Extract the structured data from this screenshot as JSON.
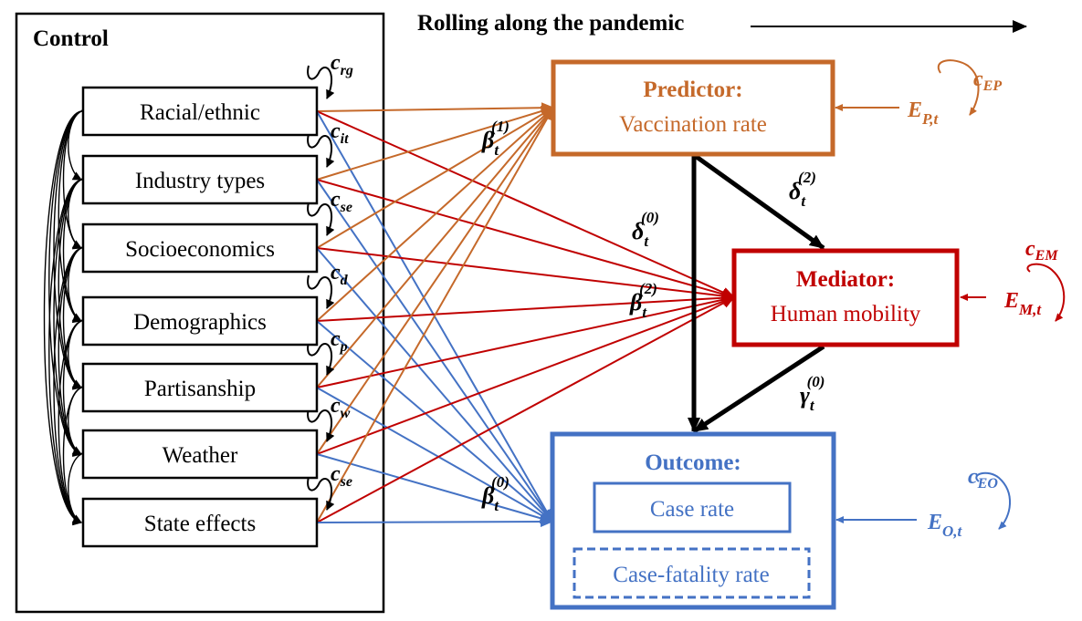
{
  "header": {
    "title": "Rolling along the pandemic"
  },
  "control": {
    "title": "Control",
    "items": [
      {
        "label": "Racial/ethnic",
        "coef": "c",
        "sub": "rg"
      },
      {
        "label": "Industry types",
        "coef": "c",
        "sub": "it"
      },
      {
        "label": "Socioeconomics",
        "coef": "c",
        "sub": "se"
      },
      {
        "label": "Demographics",
        "coef": "c",
        "sub": "d"
      },
      {
        "label": "Partisanship",
        "coef": "c",
        "sub": "p"
      },
      {
        "label": "Weather",
        "coef": "c",
        "sub": "w"
      },
      {
        "label": "State effects",
        "coef": "c",
        "sub": "se"
      }
    ]
  },
  "predictor": {
    "title": "Predictor:",
    "subtitle": "Vaccination rate",
    "error": "E",
    "error_sub": "P,t",
    "self_coef": "c",
    "self_sub": "EP"
  },
  "mediator": {
    "title": "Mediator:",
    "subtitle": "Human mobility",
    "error": "E",
    "error_sub": "M,t",
    "self_coef": "c",
    "self_sub": "EM"
  },
  "outcome": {
    "title": "Outcome:",
    "item1": "Case rate",
    "item2": "Case-fatality rate",
    "error": "E",
    "error_sub": "O,t",
    "self_coef": "c",
    "self_sub": "EO"
  },
  "coefficients": {
    "beta1": {
      "sym": "β",
      "sub": "t",
      "sup": "(1)"
    },
    "beta2": {
      "sym": "β",
      "sub": "t",
      "sup": "(2)"
    },
    "beta0": {
      "sym": "β",
      "sub": "t",
      "sup": "(0)"
    },
    "delta0": {
      "sym": "δ",
      "sub": "t",
      "sup": "(0)"
    },
    "delta2": {
      "sym": "δ",
      "sub": "t",
      "sup": "(2)"
    },
    "gamma0": {
      "sym": "γ",
      "sub": "t",
      "sup": "(0)"
    }
  },
  "colors": {
    "predictor": "#c5692a",
    "mediator": "#c00000",
    "outcome": "#4472c4",
    "black": "#000000"
  }
}
